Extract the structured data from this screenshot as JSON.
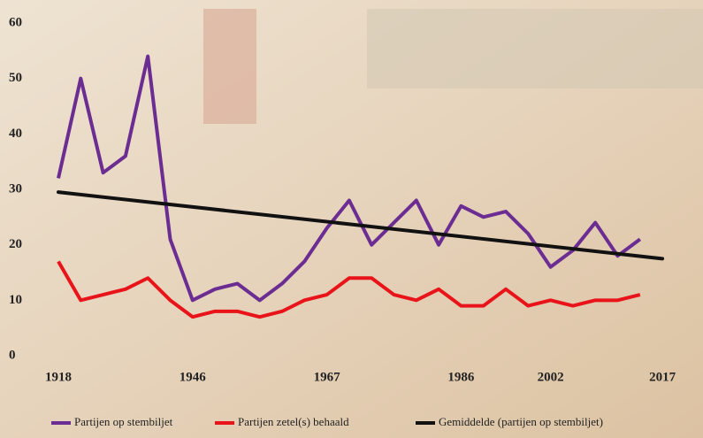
{
  "chart_data": {
    "type": "line",
    "categories": [
      "1918",
      null,
      null,
      null,
      null,
      null,
      "1946",
      null,
      null,
      null,
      null,
      null,
      "1967",
      null,
      null,
      null,
      null,
      null,
      "1986",
      null,
      null,
      null,
      "2002",
      null,
      null,
      null,
      null,
      "2017"
    ],
    "series": [
      {
        "name": "Partijen op stembiljet",
        "color": "#6b2d92",
        "values": [
          32,
          50,
          33,
          36,
          54,
          21,
          10,
          12,
          13,
          10,
          13,
          17,
          23,
          28,
          20,
          24,
          28,
          20,
          27,
          25,
          26,
          22,
          16,
          19,
          24,
          18,
          21,
          null
        ]
      },
      {
        "name": "Partijen zetel(s) behaald",
        "color": "#e8141a",
        "values": [
          17,
          10,
          11,
          12,
          14,
          10,
          7,
          8,
          8,
          7,
          8,
          10,
          11,
          14,
          14,
          11,
          10,
          12,
          9,
          9,
          12,
          9,
          10,
          9,
          10,
          10,
          11,
          null
        ]
      }
    ],
    "trend": {
      "name": "Gemiddelde (partijen op stembiljet)",
      "color": "#111111",
      "start": 29.5,
      "end": 17.5
    },
    "ylim": [
      0,
      60
    ],
    "yticks": [
      0,
      10,
      20,
      30,
      40,
      50,
      60
    ]
  }
}
